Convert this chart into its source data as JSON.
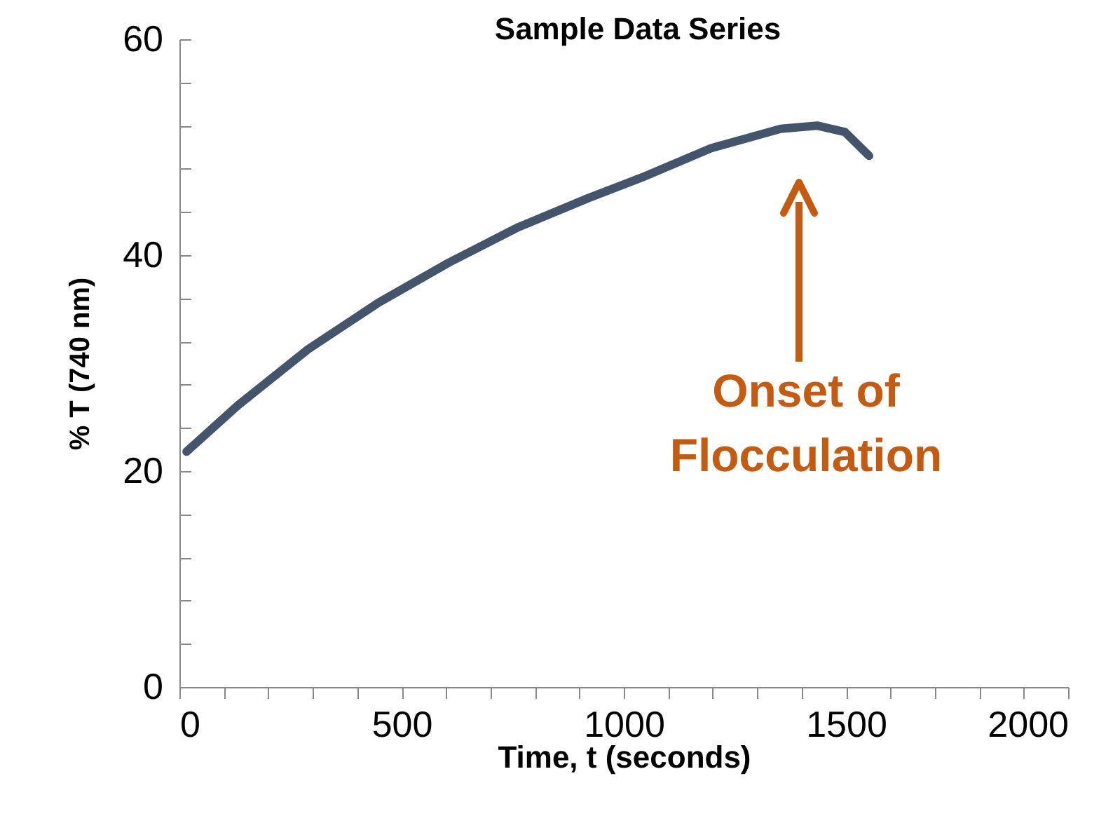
{
  "chart_data": {
    "type": "line",
    "title": "Sample Data Series",
    "xlabel": "Time, t (seconds)",
    "ylabel": "% T (740 nm)",
    "x": [
      16,
      132,
      290,
      448,
      606,
      763,
      921,
      1047,
      1196,
      1353,
      1435,
      1498,
      1552
    ],
    "series": [
      {
        "color": "#44546a",
        "values": [
          21.8,
          26.1,
          31.3,
          35.6,
          39.3,
          42.6,
          45.3,
          47.3,
          49.9,
          51.7,
          52,
          51.4,
          49.2
        ]
      }
    ],
    "xlim": [
      0,
      2000
    ],
    "ylim": [
      0,
      60
    ],
    "xticks": [
      0,
      {
        "value": 100,
        "label": null
      },
      {
        "value": 200,
        "label": null
      },
      {
        "value": 300,
        "label": null
      },
      {
        "value": 400,
        "label": null
      },
      500,
      {
        "value": 600,
        "label": null
      },
      {
        "value": 700,
        "label": null
      },
      {
        "value": 800,
        "label": null
      },
      {
        "value": 900,
        "label": null
      },
      1000,
      {
        "value": 1100,
        "label": null
      },
      {
        "value": 1200,
        "label": null
      },
      {
        "value": 1300,
        "label": null
      },
      {
        "value": 1400,
        "label": null
      },
      1500,
      {
        "value": 1600,
        "label": null
      },
      {
        "value": 1700,
        "label": null
      },
      {
        "value": 1800,
        "label": null
      },
      {
        "value": 1900,
        "label": null
      },
      2000
    ],
    "yticks": [
      0,
      {
        "value": 4,
        "label": null
      },
      {
        "value": 8,
        "label": null
      },
      {
        "value": 12,
        "label": null
      },
      {
        "value": 16,
        "label": null
      },
      20,
      {
        "value": 24,
        "label": null
      },
      {
        "value": 28,
        "label": null
      },
      {
        "value": 32,
        "label": null
      },
      {
        "value": 36,
        "label": null
      },
      40,
      {
        "value": 44,
        "label": null
      },
      {
        "value": 48,
        "label": null
      },
      {
        "value": 52,
        "label": null
      },
      {
        "value": 56,
        "label": null
      },
      60
    ],
    "annotations": [
      "Onset of\nFlocculation"
    ],
    "grid": false,
    "marker": "none",
    "line_style": "solid"
  }
}
